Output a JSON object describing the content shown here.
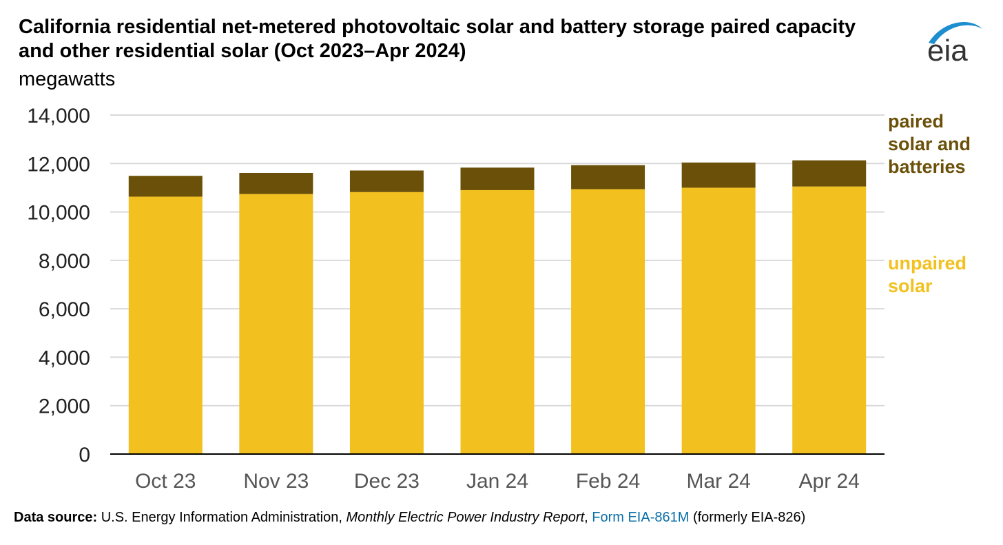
{
  "header": {
    "title": "California residential net-metered photovoltaic solar and battery storage paired capacity and other residential solar (Oct 2023–Apr 2024)",
    "subtitle": "megawatts"
  },
  "logo": {
    "text": "eia",
    "icon": "eia-logo-icon"
  },
  "colors": {
    "unpaired": "#F2C11F",
    "paired": "#6A5008",
    "grid": "#D9D9D9",
    "axis": "#000000",
    "tick_label": "#555555",
    "link": "#0A6FA8"
  },
  "chart_data": {
    "type": "bar",
    "stacked": true,
    "categories": [
      "Oct 23",
      "Nov 23",
      "Dec 23",
      "Jan 24",
      "Feb 24",
      "Mar 24",
      "Apr 24"
    ],
    "series": [
      {
        "name": "unpaired solar",
        "values": [
          10630,
          10740,
          10820,
          10900,
          10940,
          11000,
          11050
        ]
      },
      {
        "name": "paired solar and batteries",
        "values": [
          860,
          870,
          890,
          930,
          990,
          1040,
          1080
        ]
      }
    ],
    "ylabel": "megawatts",
    "ylim": [
      0,
      14000
    ],
    "yticks": [
      0,
      2000,
      4000,
      6000,
      8000,
      10000,
      12000,
      14000
    ],
    "ytick_labels": [
      "0",
      "2,000",
      "4,000",
      "6,000",
      "8,000",
      "10,000",
      "12,000",
      "14,000"
    ],
    "grid": true,
    "legend": {
      "placement": "right",
      "entries": [
        {
          "series": "paired solar and batteries",
          "lines": [
            "paired",
            "solar and",
            "batteries"
          ]
        },
        {
          "series": "unpaired solar",
          "lines": [
            "unpaired",
            "solar"
          ]
        }
      ]
    }
  },
  "footer": {
    "source_label": "Data source:",
    "source_text": " U.S. Energy Information Administration, ",
    "publication": "Monthly Electric Power Industry Report",
    "separator": ", ",
    "form_link": "Form EIA-861M",
    "note": " (formerly EIA-826)"
  }
}
